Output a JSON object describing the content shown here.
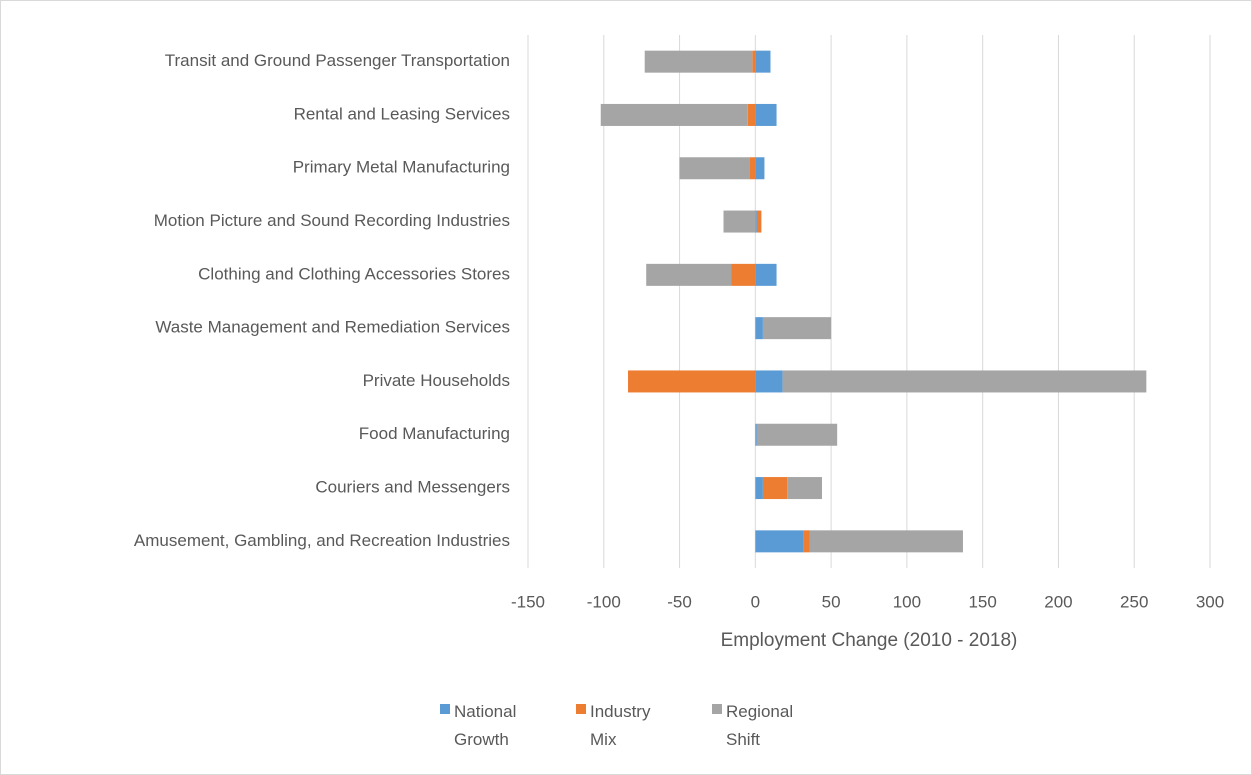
{
  "chart_data": {
    "type": "bar",
    "orientation": "horizontal",
    "stacked": true,
    "xlabel": "Employment Change (2010 - 2018)",
    "categories": [
      "Transit and Ground Passenger Transportation",
      "Rental and Leasing Services",
      "Primary Metal Manufacturing",
      "Motion Picture and Sound Recording Industries",
      "Clothing and Clothing Accessories Stores",
      "Waste Management and Remediation Services",
      "Private Households",
      "Food Manufacturing",
      "Couriers and Messengers",
      "Amusement, Gambling, and Recreation Industries"
    ],
    "series": [
      {
        "name": "National Growth",
        "color": "#5b9bd5",
        "values": [
          10,
          14,
          6,
          1,
          14,
          5,
          18,
          1,
          5,
          32
        ]
      },
      {
        "name": "Industry Mix",
        "color": "#ed7d31",
        "values": [
          -2,
          -5,
          -4,
          3,
          -16,
          0,
          -84,
          0,
          16,
          4
        ]
      },
      {
        "name": "Regional Shift",
        "color": "#a5a5a5",
        "values": [
          -71,
          -97,
          -46,
          -21,
          -56,
          45,
          240,
          53,
          23,
          101
        ]
      }
    ],
    "xlim": [
      -150,
      300
    ],
    "xticks": [
      -150,
      -100,
      -50,
      0,
      50,
      100,
      150,
      200,
      250,
      300
    ],
    "grid": true,
    "legend": "bottom"
  }
}
